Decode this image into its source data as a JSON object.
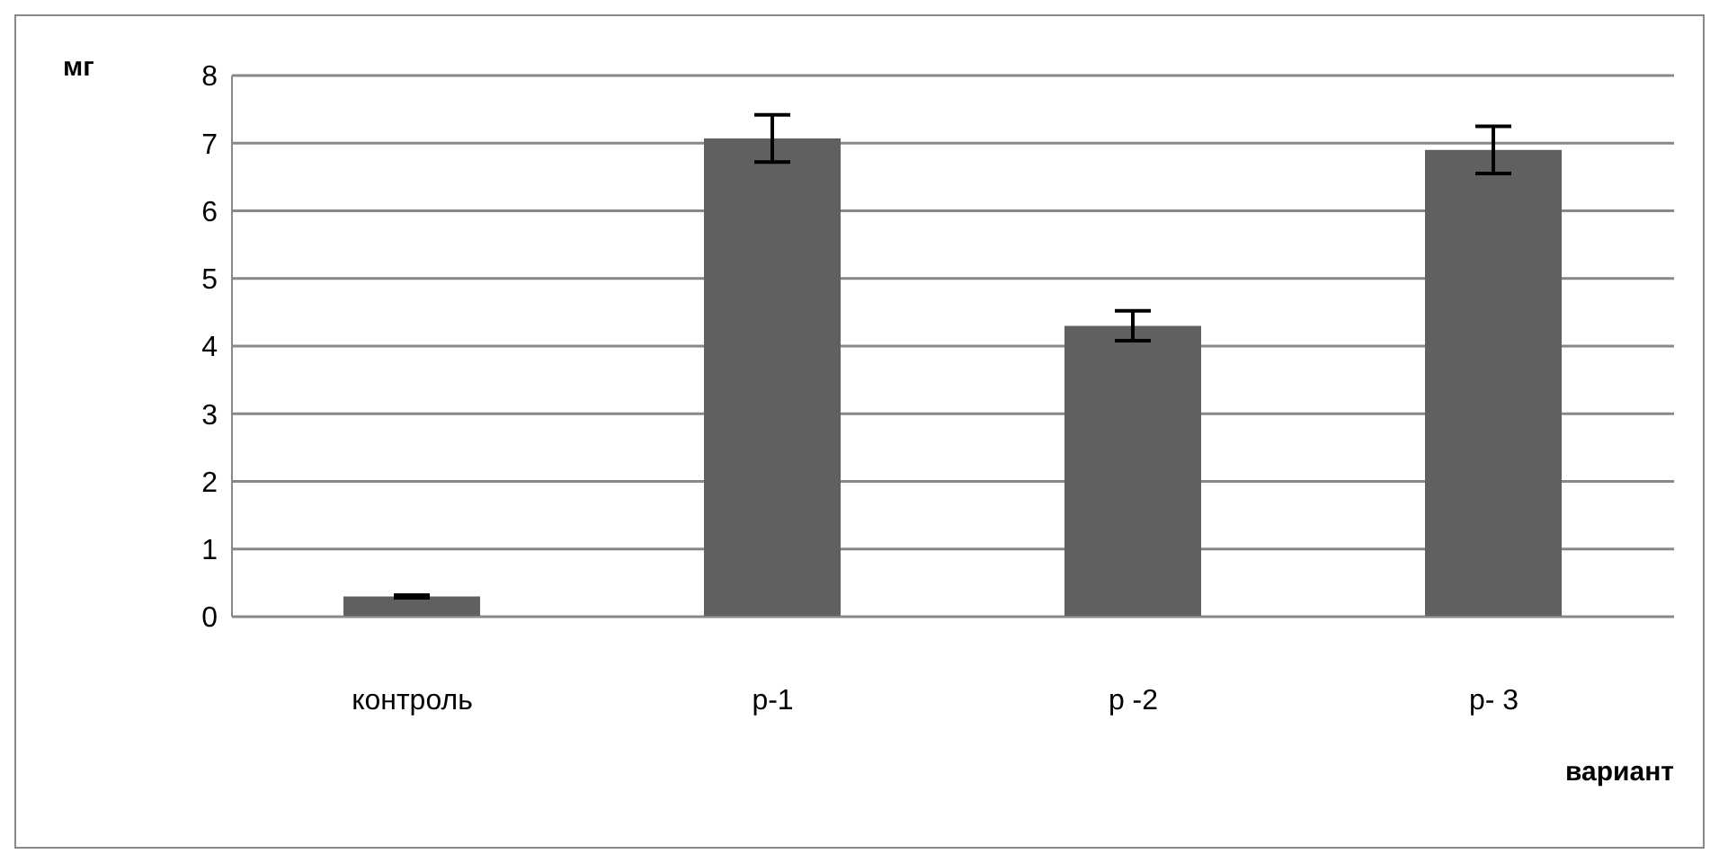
{
  "chart_data": {
    "type": "bar",
    "ylabel": "мг",
    "xlabel": "вариант",
    "categories": [
      "контроль",
      "р-1",
      "р -2",
      "р- 3"
    ],
    "values": [
      0.3,
      7.07,
      4.3,
      6.9
    ],
    "errors": [
      0.02,
      0.35,
      0.22,
      0.35
    ],
    "color": "#606060",
    "ylim": [
      0,
      8
    ],
    "yticks": [
      0,
      1,
      2,
      3,
      4,
      5,
      6,
      7,
      8
    ],
    "grid": "y"
  }
}
